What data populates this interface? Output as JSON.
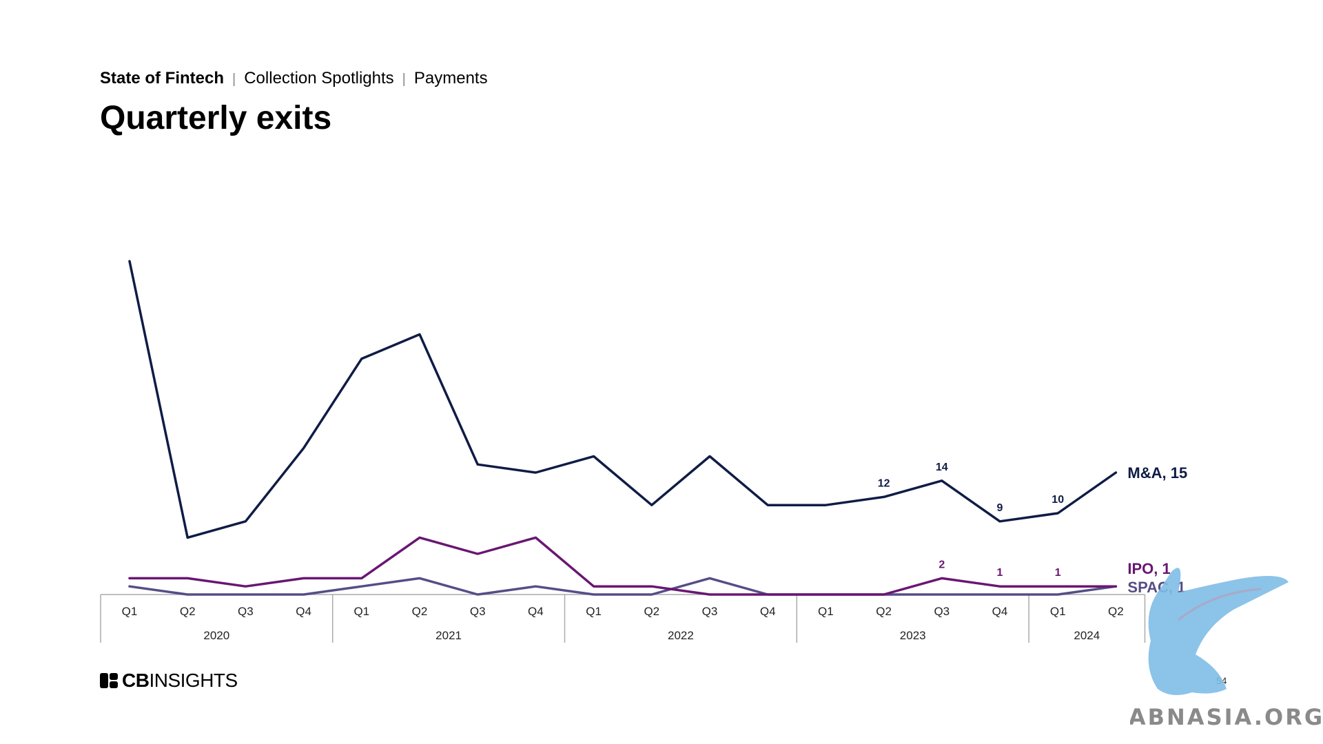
{
  "header": {
    "crumbs": [
      "State of Fintech",
      "Collection Spotlights",
      "Payments"
    ],
    "separator": "|",
    "title": "Quarterly exits"
  },
  "footer": {
    "brand_bold": "CB",
    "brand_rest": "INSIGHTS",
    "page_number": "54",
    "watermark_text": "ABNASIA.ORG"
  },
  "colors": {
    "ma": "#0f1c45",
    "ipo": "#6a1673",
    "spac": "#564d86",
    "axis": "#aaaaaa",
    "watermark": "#7fbde6"
  },
  "chart_data": {
    "type": "line",
    "quarters": [
      "Q1",
      "Q2",
      "Q3",
      "Q4",
      "Q1",
      "Q2",
      "Q3",
      "Q4",
      "Q1",
      "Q2",
      "Q3",
      "Q4",
      "Q1",
      "Q2",
      "Q3",
      "Q4",
      "Q1",
      "Q2"
    ],
    "years": [
      {
        "label": "2020",
        "quarters": 4
      },
      {
        "label": "2021",
        "quarters": 4
      },
      {
        "label": "2022",
        "quarters": 4
      },
      {
        "label": "2023",
        "quarters": 4
      },
      {
        "label": "2024",
        "quarters": 2
      }
    ],
    "ylim": [
      0,
      42
    ],
    "series": [
      {
        "name": "M&A",
        "end_label": "M&A, 15",
        "color_key": "ma",
        "values": [
          41,
          7,
          9,
          18,
          29,
          32,
          16,
          15,
          17,
          11,
          17,
          11,
          11,
          12,
          14,
          9,
          10,
          15
        ],
        "point_labels": [
          null,
          null,
          null,
          null,
          null,
          null,
          null,
          null,
          null,
          null,
          null,
          null,
          null,
          "12",
          "14",
          "9",
          "10",
          null
        ]
      },
      {
        "name": "IPO",
        "end_label": "IPO, 1",
        "color_key": "ipo",
        "values": [
          2,
          2,
          1,
          2,
          2,
          7,
          5,
          7,
          1,
          1,
          0,
          0,
          0,
          0,
          2,
          1,
          1,
          1
        ],
        "point_labels": [
          null,
          null,
          null,
          null,
          null,
          null,
          null,
          null,
          null,
          null,
          null,
          null,
          null,
          null,
          "2",
          "1",
          "1",
          null
        ]
      },
      {
        "name": "SPAC",
        "end_label": "SPAC, 1",
        "color_key": "spac",
        "values": [
          1,
          0,
          0,
          0,
          1,
          2,
          0,
          1,
          0,
          0,
          2,
          0,
          0,
          0,
          0,
          0,
          0,
          1
        ],
        "point_labels": [
          null,
          null,
          null,
          null,
          null,
          null,
          null,
          null,
          null,
          null,
          null,
          null,
          null,
          null,
          null,
          null,
          null,
          null
        ]
      }
    ]
  }
}
